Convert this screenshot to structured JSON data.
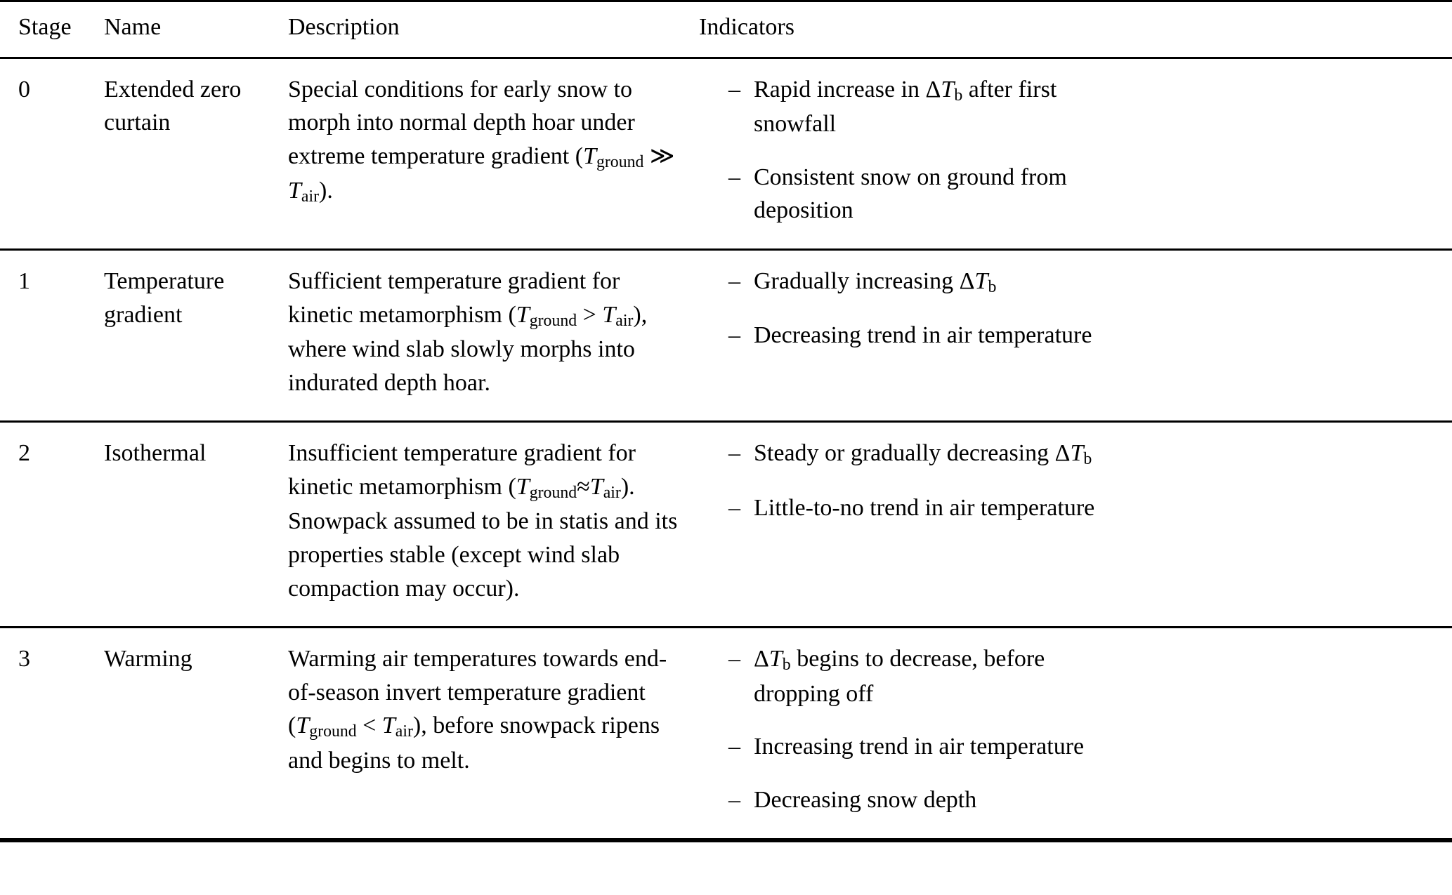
{
  "misc": {
    "bullet": "–"
  },
  "table": {
    "headers": [
      "Stage",
      "Name",
      "Description",
      "Indicators"
    ],
    "rows": [
      {
        "stage": "0",
        "name": "Extended zero curtain",
        "description": [
          {
            "t": "Special conditions for early snow to morph into normal depth hoar under extreme temperature gradient ("
          },
          {
            "t": "T",
            "i": true
          },
          {
            "t": "ground",
            "sub": true
          },
          {
            "t": " ≫ "
          },
          {
            "t": "T",
            "i": true
          },
          {
            "t": "air",
            "sub": true
          },
          {
            "t": ")."
          }
        ],
        "indicators": [
          [
            {
              "t": "Rapid increase in Δ"
            },
            {
              "t": "T",
              "i": true
            },
            {
              "t": "b",
              "sub": true
            },
            {
              "t": " after first snowfall"
            }
          ],
          [
            {
              "t": "Consistent snow on ground from deposition"
            }
          ]
        ]
      },
      {
        "stage": "1",
        "name": "Temperature gradient",
        "description": [
          {
            "t": "Sufficient temperature gradient for kinetic metamorphism ("
          },
          {
            "t": "T",
            "i": true
          },
          {
            "t": "ground",
            "sub": true
          },
          {
            "t": " > "
          },
          {
            "t": "T",
            "i": true
          },
          {
            "t": "air",
            "sub": true
          },
          {
            "t": "), where wind slab slowly morphs into indurated depth hoar."
          }
        ],
        "indicators": [
          [
            {
              "t": "Gradually increasing Δ"
            },
            {
              "t": "T",
              "i": true
            },
            {
              "t": "b",
              "sub": true
            }
          ],
          [
            {
              "t": "Decreasing trend in air temperature"
            }
          ]
        ]
      },
      {
        "stage": "2",
        "name": "Isothermal",
        "description": [
          {
            "t": "Insufficient temperature gradient for kinetic metamorphism ("
          },
          {
            "t": "T",
            "i": true
          },
          {
            "t": "ground",
            "sub": true
          },
          {
            "t": "≈"
          },
          {
            "t": "T",
            "i": true
          },
          {
            "t": "air",
            "sub": true
          },
          {
            "t": "). Snowpack assumed to be in statis and its properties stable (except wind slab compaction may occur)."
          }
        ],
        "indicators": [
          [
            {
              "t": "Steady or gradually decreasing Δ"
            },
            {
              "t": "T",
              "i": true
            },
            {
              "t": "b",
              "sub": true
            }
          ],
          [
            {
              "t": "Little-to-no trend in air temperature"
            }
          ]
        ]
      },
      {
        "stage": "3",
        "name": "Warming",
        "description": [
          {
            "t": "Warming air temperatures towards end-of-season invert temperature gradient ("
          },
          {
            "t": "T",
            "i": true
          },
          {
            "t": "ground",
            "sub": true
          },
          {
            "t": " < "
          },
          {
            "t": "T",
            "i": true
          },
          {
            "t": "air",
            "sub": true
          },
          {
            "t": "), before snowpack ripens and begins to melt."
          }
        ],
        "indicators": [
          [
            {
              "t": "Δ"
            },
            {
              "t": "T",
              "i": true
            },
            {
              "t": "b",
              "sub": true
            },
            {
              "t": " begins to decrease, before dropping off"
            }
          ],
          [
            {
              "t": "Increasing trend in air temperature"
            }
          ],
          [
            {
              "t": "Decreasing snow depth"
            }
          ]
        ]
      }
    ]
  }
}
